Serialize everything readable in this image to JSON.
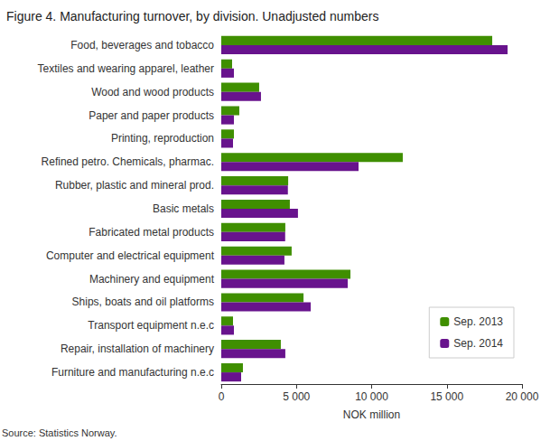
{
  "chart_data": {
    "type": "bar",
    "orientation": "horizontal",
    "title": "Figure 4. Manufacturing turnover, by division. Unadjusted numbers",
    "source": "Source: Statistics Norway.",
    "xlabel": "NOK million",
    "categories": [
      "Food, beverages and tobacco",
      "Textiles and wearing apparel, leather",
      "Wood and wood products",
      "Paper and paper products",
      "Printing, reproduction",
      "Refined petro. Chemicals, pharmac.",
      "Rubber, plastic and mineral prod.",
      "Basic metals",
      "Fabricated metal products",
      "Computer and electrical equipment",
      "Machinery and equipment",
      "Ships, boats and oil platforms",
      "Transport equipment n.e.c",
      "Repair, installation of machinery",
      "Furniture and manufacturing n.e.c"
    ],
    "series": [
      {
        "name": "Sep. 2013",
        "color": "#3f8f00",
        "values": [
          18020,
          720,
          2520,
          1200,
          840,
          12070,
          4450,
          4560,
          4260,
          4680,
          8590,
          5470,
          780,
          3960,
          1440
        ]
      },
      {
        "name": "Sep. 2014",
        "color": "#68138d",
        "values": [
          19040,
          840,
          2640,
          840,
          780,
          9130,
          4430,
          5100,
          4250,
          4200,
          8410,
          5950,
          840,
          4260,
          1320
        ]
      }
    ],
    "xlim": [
      0,
      20000
    ],
    "xticks": [
      0,
      {
        "value": 5000,
        "label": "5 000"
      },
      {
        "value": 10000,
        "label": "10 000"
      },
      {
        "value": 15000,
        "label": "15 000"
      },
      {
        "value": 20000,
        "label": "20 000"
      }
    ],
    "grid": false,
    "legend": "lower right"
  }
}
